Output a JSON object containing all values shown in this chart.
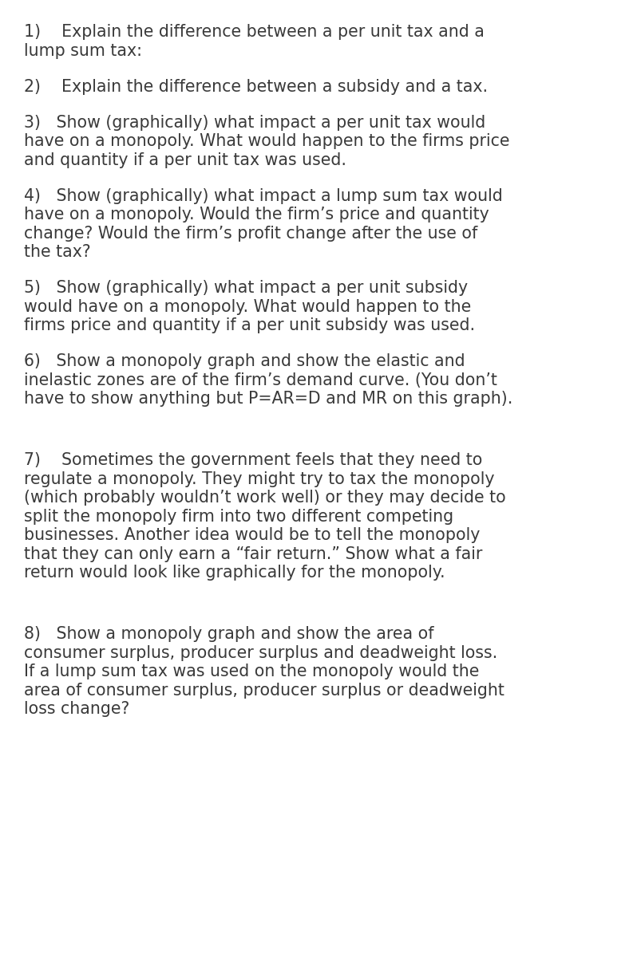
{
  "background_color": "#ffffff",
  "text_color": "#3a3a3a",
  "font_size": 14.8,
  "items": [
    {
      "lines": [
        "1)    Explain the difference between a per unit tax and a",
        "lump sum tax:"
      ],
      "extra_before": 0
    },
    {
      "lines": [
        "2)    Explain the difference between a subsidy and a tax."
      ],
      "extra_before": 18
    },
    {
      "lines": [
        "3)   Show (graphically) what impact a per unit tax would",
        "have on a monopoly. What would happen to the firms price",
        "and quantity if a per unit tax was used."
      ],
      "extra_before": 18
    },
    {
      "lines": [
        "4)   Show (graphically) what impact a lump sum tax would",
        "have on a monopoly. Would the firm’s price and quantity",
        "change? Would the firm’s profit change after the use of",
        "the tax?"
      ],
      "extra_before": 18
    },
    {
      "lines": [
        "5)   Show (graphically) what impact a per unit subsidy",
        "would have on a monopoly. What would happen to the",
        "firms price and quantity if a per unit subsidy was used."
      ],
      "extra_before": 18
    },
    {
      "lines": [
        "6)   Show a monopoly graph and show the elastic and",
        "inelastic zones are of the firm’s demand curve. (You don’t",
        "have to show anything but P=AR=D and MR on this graph)."
      ],
      "extra_before": 18
    },
    {
      "lines": [
        "7)    Sometimes the government feels that they need to",
        "regulate a monopoly. They might try to tax the monopoly",
        "(which probably wouldn’t work well) or they may decide to",
        "split the monopoly firm into two different competing",
        "businesses. Another idea would be to tell the monopoly",
        "that they can only earn a “fair return.” Show what a fair",
        "return would look like graphically for the monopoly."
      ],
      "extra_before": 50
    },
    {
      "lines": [
        "8)   Show a monopoly graph and show the area of",
        "consumer surplus, producer surplus and deadweight loss.",
        "If a lump sum tax was used on the monopoly would the",
        "area of consumer surplus, producer surplus or deadweight",
        "loss change?"
      ],
      "extra_before": 50
    }
  ]
}
